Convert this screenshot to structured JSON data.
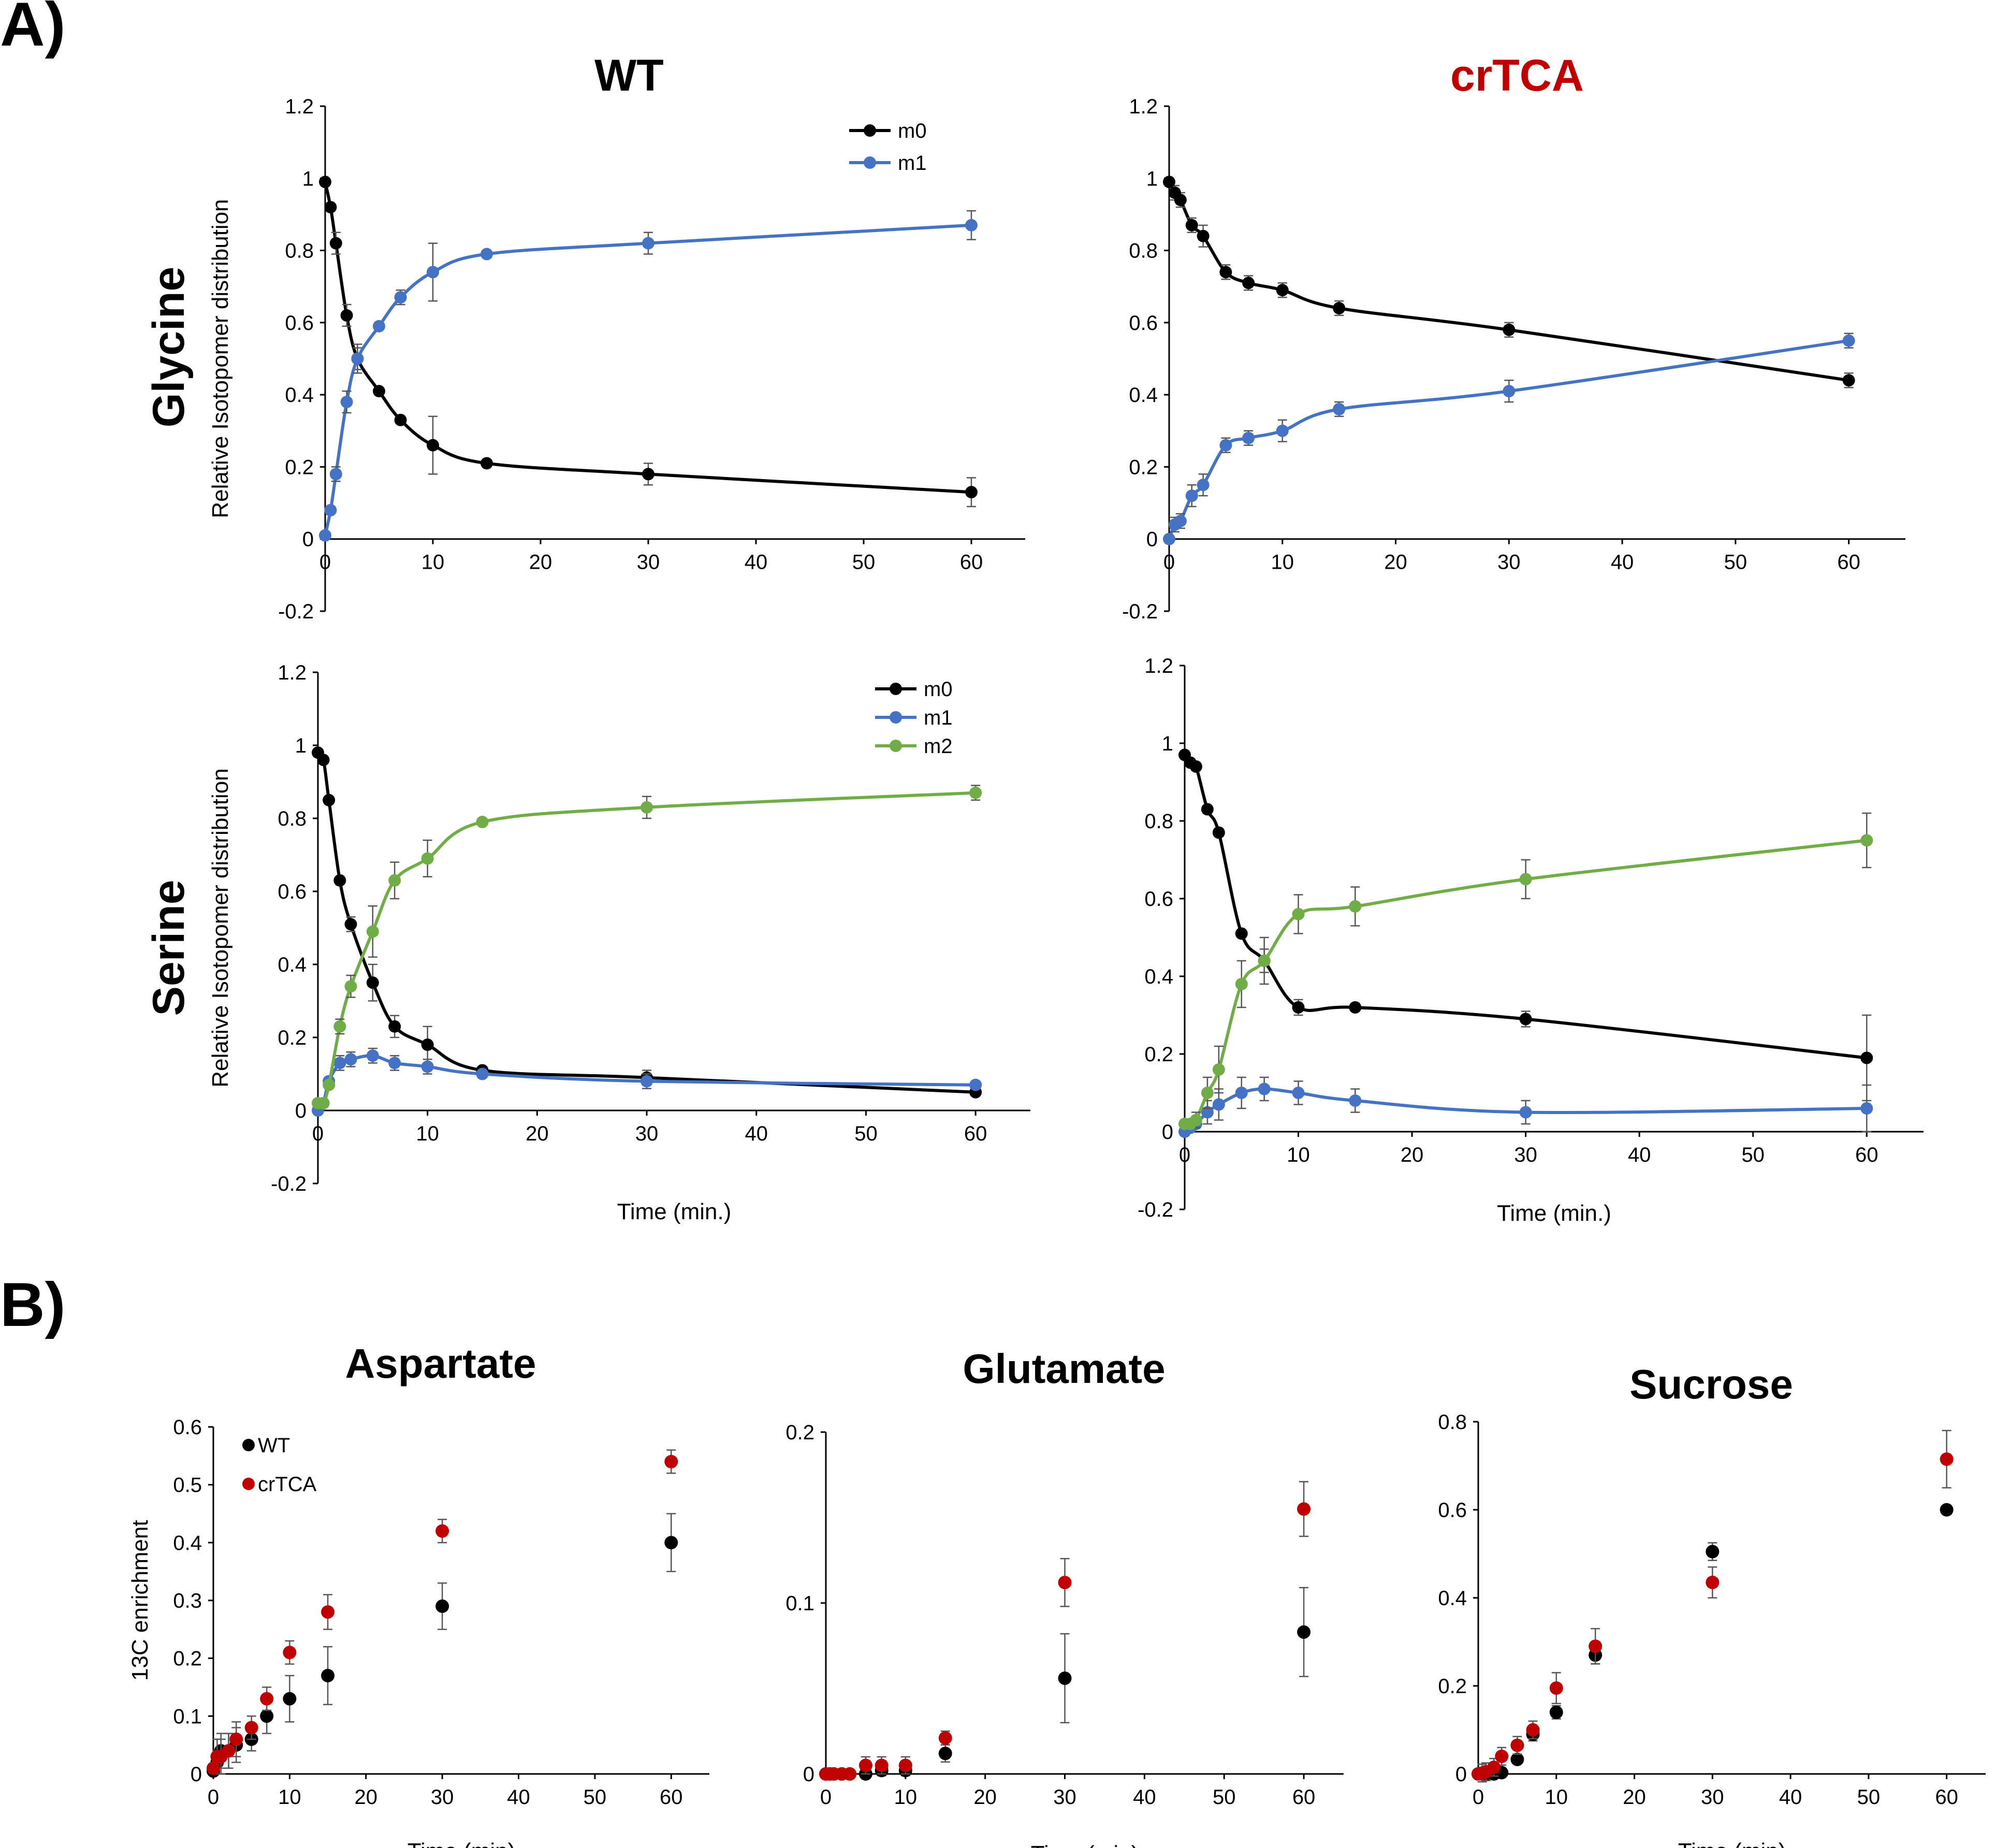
{
  "figure": {
    "panel_a_label": "A)",
    "panel_b_label": "B)",
    "col_titles": [
      {
        "text": "WT",
        "color": "#000000"
      },
      {
        "text": "crTCA",
        "color": "#c00000"
      }
    ],
    "row_titles": [
      "Glycine",
      "Serine"
    ],
    "colors": {
      "m0": "#000000",
      "m1": "#4472c4",
      "m2": "#70ad47",
      "WT": "#000000",
      "crTCA": "#c00000",
      "errorbar": "#555555"
    }
  },
  "chart_data": [
    {
      "id": "glycine-wt",
      "type": "line",
      "title": "WT",
      "row_label": "Glycine",
      "xlabel": "",
      "ylabel": "Relative Isotopomer distribution",
      "xlim": [
        0,
        65
      ],
      "ylim": [
        -0.2,
        1.2
      ],
      "xticks": [
        "0",
        "10",
        "20",
        "30",
        "40",
        "50",
        "60"
      ],
      "xtick_values": [
        0,
        10,
        20,
        30,
        40,
        50,
        60
      ],
      "yticks": [
        "-0.2",
        "0",
        "0.2",
        "0.4",
        "0.6",
        "0.8",
        "1",
        "1.2"
      ],
      "ytick_values": [
        -0.2,
        0,
        0.2,
        0.4,
        0.6,
        0.8,
        1,
        1.2
      ],
      "x": [
        0,
        0.5,
        1,
        2,
        3,
        5,
        7,
        10,
        15,
        30,
        60
      ],
      "legend": [
        "m0",
        "m1"
      ],
      "series": [
        {
          "name": "m0",
          "values": [
            0.99,
            0.92,
            0.82,
            0.62,
            0.5,
            0.41,
            0.33,
            0.26,
            0.21,
            0.18,
            0.13
          ],
          "errors": [
            0.01,
            0.01,
            0.03,
            0.03,
            0.03,
            0.01,
            0.01,
            0.08,
            0.01,
            0.03,
            0.04
          ]
        },
        {
          "name": "m1",
          "values": [
            0.01,
            0.08,
            0.18,
            0.38,
            0.5,
            0.59,
            0.67,
            0.74,
            0.79,
            0.82,
            0.87
          ],
          "errors": [
            0.01,
            0.01,
            0.02,
            0.03,
            0.04,
            0.01,
            0.02,
            0.08,
            0.01,
            0.03,
            0.04
          ]
        }
      ]
    },
    {
      "id": "glycine-crtca",
      "type": "line",
      "title": "crTCA",
      "row_label": "Glycine",
      "xlabel": "",
      "ylabel": "",
      "xlim": [
        0,
        65
      ],
      "ylim": [
        -0.2,
        1.2
      ],
      "xticks": [
        "0",
        "10",
        "20",
        "30",
        "40",
        "50",
        "60"
      ],
      "xtick_values": [
        0,
        10,
        20,
        30,
        40,
        50,
        60
      ],
      "yticks": [
        "-0.2",
        "0",
        "0.2",
        "0.4",
        "0.6",
        "0.8",
        "1",
        "1.2"
      ],
      "ytick_values": [
        -0.2,
        0,
        0.2,
        0.4,
        0.6,
        0.8,
        1,
        1.2
      ],
      "x": [
        0,
        0.5,
        1,
        2,
        3,
        5,
        7,
        10,
        15,
        30,
        60
      ],
      "legend": [],
      "series": [
        {
          "name": "m0",
          "values": [
            0.99,
            0.96,
            0.94,
            0.87,
            0.84,
            0.74,
            0.71,
            0.69,
            0.64,
            0.58,
            0.44
          ],
          "errors": [
            0.01,
            0.02,
            0.02,
            0.02,
            0.03,
            0.02,
            0.02,
            0.02,
            0.02,
            0.02,
            0.02
          ]
        },
        {
          "name": "m1",
          "values": [
            0.0,
            0.04,
            0.05,
            0.12,
            0.15,
            0.26,
            0.28,
            0.3,
            0.36,
            0.41,
            0.55
          ],
          "errors": [
            0.01,
            0.02,
            0.02,
            0.03,
            0.03,
            0.02,
            0.02,
            0.03,
            0.02,
            0.03,
            0.02
          ]
        }
      ]
    },
    {
      "id": "serine-wt",
      "type": "line",
      "title": "",
      "row_label": "Serine",
      "xlabel": "Time (min.)",
      "ylabel": "Relative Isotopomer distribution",
      "xlim": [
        0,
        65
      ],
      "ylim": [
        -0.2,
        1.2
      ],
      "xticks": [
        "0",
        "10",
        "20",
        "30",
        "40",
        "50",
        "60"
      ],
      "xtick_values": [
        0,
        10,
        20,
        30,
        40,
        50,
        60
      ],
      "yticks": [
        "-0.2",
        "0",
        "0.2",
        "0.4",
        "0.6",
        "0.8",
        "1",
        "1.2"
      ],
      "ytick_values": [
        -0.2,
        0,
        0.2,
        0.4,
        0.6,
        0.8,
        1,
        1.2
      ],
      "x": [
        0,
        0.5,
        1,
        2,
        3,
        5,
        7,
        10,
        15,
        30,
        60
      ],
      "legend": [
        "m0",
        "m1",
        "m2"
      ],
      "series": [
        {
          "name": "m0",
          "values": [
            0.98,
            0.96,
            0.85,
            0.63,
            0.51,
            0.35,
            0.23,
            0.18,
            0.11,
            0.09,
            0.05
          ],
          "errors": [
            0.01,
            0.01,
            0.01,
            0.01,
            0.02,
            0.05,
            0.03,
            0.05,
            0.01,
            0.02,
            0.01
          ]
        },
        {
          "name": "m1",
          "values": [
            0.0,
            0.02,
            0.08,
            0.13,
            0.14,
            0.15,
            0.13,
            0.12,
            0.1,
            0.08,
            0.07
          ],
          "errors": [
            0.01,
            0.01,
            0.01,
            0.02,
            0.02,
            0.02,
            0.02,
            0.02,
            0.01,
            0.02,
            0.01
          ]
        },
        {
          "name": "m2",
          "values": [
            0.02,
            0.02,
            0.07,
            0.23,
            0.34,
            0.49,
            0.63,
            0.69,
            0.79,
            0.83,
            0.87
          ],
          "errors": [
            0.01,
            0.01,
            0.01,
            0.02,
            0.03,
            0.07,
            0.05,
            0.05,
            0.01,
            0.03,
            0.02
          ]
        }
      ]
    },
    {
      "id": "serine-crtca",
      "type": "line",
      "title": "",
      "row_label": "Serine",
      "xlabel": "Time (min.)",
      "ylabel": "",
      "xlim": [
        0,
        65
      ],
      "ylim": [
        -0.2,
        1.2
      ],
      "xticks": [
        "0",
        "10",
        "20",
        "30",
        "40",
        "50",
        "60"
      ],
      "xtick_values": [
        0,
        10,
        20,
        30,
        40,
        50,
        60
      ],
      "yticks": [
        "-0.2",
        "0",
        "0.2",
        "0.4",
        "0.6",
        "0.8",
        "1",
        "1.2"
      ],
      "ytick_values": [
        -0.2,
        0,
        0.2,
        0.4,
        0.6,
        0.8,
        1,
        1.2
      ],
      "x": [
        0,
        0.5,
        1,
        2,
        3,
        5,
        7,
        10,
        15,
        30,
        60
      ],
      "legend": [],
      "series": [
        {
          "name": "m0",
          "values": [
            0.97,
            0.95,
            0.94,
            0.83,
            0.77,
            0.51,
            0.44,
            0.32,
            0.32,
            0.29,
            0.19
          ],
          "errors": [
            0.01,
            0.01,
            0.01,
            0.01,
            0.01,
            0.01,
            0.03,
            0.02,
            0.01,
            0.02,
            0.11
          ]
        },
        {
          "name": "m1",
          "values": [
            0.0,
            0.01,
            0.02,
            0.05,
            0.07,
            0.1,
            0.11,
            0.1,
            0.08,
            0.05,
            0.06
          ],
          "errors": [
            0.01,
            0.01,
            0.01,
            0.03,
            0.04,
            0.04,
            0.03,
            0.03,
            0.03,
            0.03,
            0.06
          ]
        },
        {
          "name": "m2",
          "values": [
            0.02,
            0.02,
            0.03,
            0.1,
            0.16,
            0.38,
            0.44,
            0.56,
            0.58,
            0.65,
            0.75
          ],
          "errors": [
            0.01,
            0.01,
            0.02,
            0.04,
            0.06,
            0.06,
            0.06,
            0.05,
            0.05,
            0.05,
            0.07
          ]
        }
      ]
    },
    {
      "id": "aspartate",
      "type": "scatter",
      "title": "Aspartate",
      "xlabel": "Time (min)",
      "ylabel": "13C enrichment",
      "xlim": [
        0,
        65
      ],
      "ylim": [
        0,
        0.6
      ],
      "xticks": [
        "0",
        "10",
        "20",
        "30",
        "40",
        "50",
        "60"
      ],
      "xtick_values": [
        0,
        10,
        20,
        30,
        40,
        50,
        60
      ],
      "yticks": [
        "0",
        "0.1",
        "0.2",
        "0.3",
        "0.4",
        "0.5",
        "0.6"
      ],
      "ytick_values": [
        0,
        0.1,
        0.2,
        0.3,
        0.4,
        0.5,
        0.6
      ],
      "x": [
        0,
        0.5,
        1,
        2,
        3,
        5,
        7,
        10,
        15,
        30,
        60
      ],
      "legend": [
        "WT",
        "crTCA"
      ],
      "series": [
        {
          "name": "WT",
          "values": [
            0.005,
            0.02,
            0.04,
            0.04,
            0.05,
            0.06,
            0.1,
            0.13,
            0.17,
            0.29,
            0.4
          ],
          "errors": [
            0.005,
            0.02,
            0.03,
            0.03,
            0.03,
            0.02,
            0.03,
            0.04,
            0.05,
            0.04,
            0.05
          ]
        },
        {
          "name": "crTCA",
          "values": [
            0.01,
            0.03,
            0.03,
            0.04,
            0.06,
            0.08,
            0.13,
            0.21,
            0.28,
            0.42,
            0.54
          ],
          "errors": [
            0.005,
            0.03,
            0.03,
            0.03,
            0.03,
            0.02,
            0.02,
            0.02,
            0.03,
            0.02,
            0.02
          ]
        }
      ]
    },
    {
      "id": "glutamate",
      "type": "scatter",
      "title": "Glutamate",
      "xlabel": "Time (min)",
      "ylabel": "",
      "xlim": [
        0,
        65
      ],
      "ylim": [
        0,
        0.2
      ],
      "xticks": [
        "0",
        "10",
        "20",
        "30",
        "40",
        "50",
        "60"
      ],
      "xtick_values": [
        0,
        10,
        20,
        30,
        40,
        50,
        60
      ],
      "yticks": [
        "0",
        "0.1",
        "0.2"
      ],
      "ytick_values": [
        0,
        0.1,
        0.2
      ],
      "x": [
        0,
        0.5,
        1,
        2,
        3,
        5,
        7,
        10,
        15,
        30,
        60
      ],
      "legend": [],
      "series": [
        {
          "name": "WT",
          "values": [
            0.0,
            0.0,
            0.0,
            0.0,
            0.0,
            0.0,
            0.002,
            0.002,
            0.012,
            0.056,
            0.083
          ],
          "errors": [
            0.001,
            0.001,
            0.001,
            0.001,
            0.001,
            0.002,
            0.003,
            0.003,
            0.005,
            0.026,
            0.026
          ]
        },
        {
          "name": "crTCA",
          "values": [
            0.0,
            0.0,
            0.0,
            0.0,
            0.0,
            0.005,
            0.005,
            0.005,
            0.021,
            0.112,
            0.155
          ],
          "errors": [
            0.001,
            0.001,
            0.001,
            0.001,
            0.001,
            0.005,
            0.005,
            0.005,
            0.004,
            0.014,
            0.016
          ]
        }
      ]
    },
    {
      "id": "sucrose",
      "type": "scatter",
      "title": "Sucrose",
      "xlabel": "Time (min)",
      "ylabel": "",
      "xlim": [
        0,
        65
      ],
      "ylim": [
        0,
        0.8
      ],
      "xticks": [
        "0",
        "10",
        "20",
        "30",
        "40",
        "50",
        "60"
      ],
      "xtick_values": [
        0,
        10,
        20,
        30,
        40,
        50,
        60
      ],
      "yticks": [
        "0",
        "0.2",
        "0.4",
        "0.6",
        "0.8"
      ],
      "ytick_values": [
        0,
        0.2,
        0.4,
        0.6,
        0.8
      ],
      "x": [
        0,
        0.5,
        1,
        2,
        3,
        5,
        7,
        10,
        15,
        30,
        60
      ],
      "legend": [],
      "series": [
        {
          "name": "WT",
          "values": [
            0.0,
            0.0,
            0.0,
            0.0,
            0.003,
            0.033,
            0.09,
            0.14,
            0.27,
            0.505,
            0.6
          ],
          "errors": [
            0.002,
            0.003,
            0.003,
            0.003,
            0.005,
            0.01,
            0.015,
            0.015,
            0.02,
            0.02,
            0.01
          ]
        },
        {
          "name": "crTCA",
          "values": [
            0.0,
            0.002,
            0.005,
            0.015,
            0.04,
            0.065,
            0.1,
            0.195,
            0.29,
            0.435,
            0.715
          ],
          "errors": [
            0.002,
            0.02,
            0.02,
            0.02,
            0.02,
            0.02,
            0.02,
            0.035,
            0.04,
            0.035,
            0.065
          ]
        }
      ]
    }
  ]
}
